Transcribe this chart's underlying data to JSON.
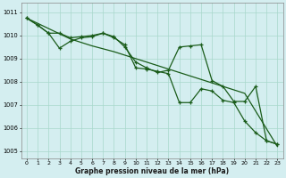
{
  "title": "Graphe pression niveau de la mer (hPa)",
  "bg_color": "#d4eef0",
  "grid_color": "#a8d8cc",
  "line_color": "#1a5c1a",
  "xlim": [
    -0.5,
    23.5
  ],
  "ylim": [
    1004.7,
    1011.4
  ],
  "xticks": [
    0,
    1,
    2,
    3,
    4,
    5,
    6,
    7,
    8,
    9,
    10,
    11,
    12,
    13,
    14,
    15,
    16,
    17,
    18,
    19,
    20,
    21,
    22,
    23
  ],
  "yticks": [
    1005,
    1006,
    1007,
    1008,
    1009,
    1010,
    1011
  ],
  "series_smooth": [
    [
      0,
      1010.75
    ],
    [
      2,
      1010.3
    ],
    [
      4,
      1009.85
    ],
    [
      6,
      1009.55
    ],
    [
      8,
      1009.3
    ],
    [
      10,
      1009.0
    ],
    [
      12,
      1008.7
    ],
    [
      14,
      1008.4
    ],
    [
      16,
      1008.1
    ],
    [
      18,
      1007.8
    ],
    [
      20,
      1007.5
    ],
    [
      23,
      1005.2
    ]
  ],
  "series1": [
    [
      0,
      1010.75
    ],
    [
      1,
      1010.45
    ],
    [
      2,
      1010.1
    ],
    [
      3,
      1009.45
    ],
    [
      4,
      1009.75
    ],
    [
      5,
      1009.9
    ],
    [
      6,
      1009.95
    ],
    [
      7,
      1010.1
    ],
    [
      8,
      1009.9
    ],
    [
      9,
      1009.6
    ],
    [
      10,
      1008.6
    ],
    [
      11,
      1008.55
    ],
    [
      12,
      1008.45
    ],
    [
      13,
      1008.35
    ],
    [
      14,
      1007.1
    ],
    [
      15,
      1007.1
    ],
    [
      16,
      1007.7
    ],
    [
      17,
      1007.6
    ],
    [
      18,
      1007.2
    ],
    [
      19,
      1007.1
    ],
    [
      20,
      1006.3
    ],
    [
      21,
      1005.8
    ],
    [
      22,
      1005.45
    ],
    [
      23,
      1005.3
    ]
  ],
  "series2": [
    [
      0,
      1010.75
    ],
    [
      1,
      1010.45
    ],
    [
      2,
      1010.1
    ],
    [
      3,
      1010.1
    ],
    [
      4,
      1009.9
    ],
    [
      5,
      1009.95
    ],
    [
      6,
      1010.0
    ],
    [
      7,
      1010.1
    ],
    [
      8,
      1009.95
    ],
    [
      9,
      1009.5
    ],
    [
      10,
      1008.85
    ],
    [
      11,
      1008.6
    ],
    [
      12,
      1008.4
    ],
    [
      13,
      1008.5
    ],
    [
      14,
      1009.5
    ],
    [
      15,
      1009.55
    ],
    [
      16,
      1009.6
    ],
    [
      17,
      1008.05
    ],
    [
      18,
      1007.8
    ],
    [
      19,
      1007.15
    ],
    [
      20,
      1007.15
    ],
    [
      21,
      1007.8
    ],
    [
      22,
      1005.45
    ],
    [
      23,
      1005.3
    ]
  ]
}
